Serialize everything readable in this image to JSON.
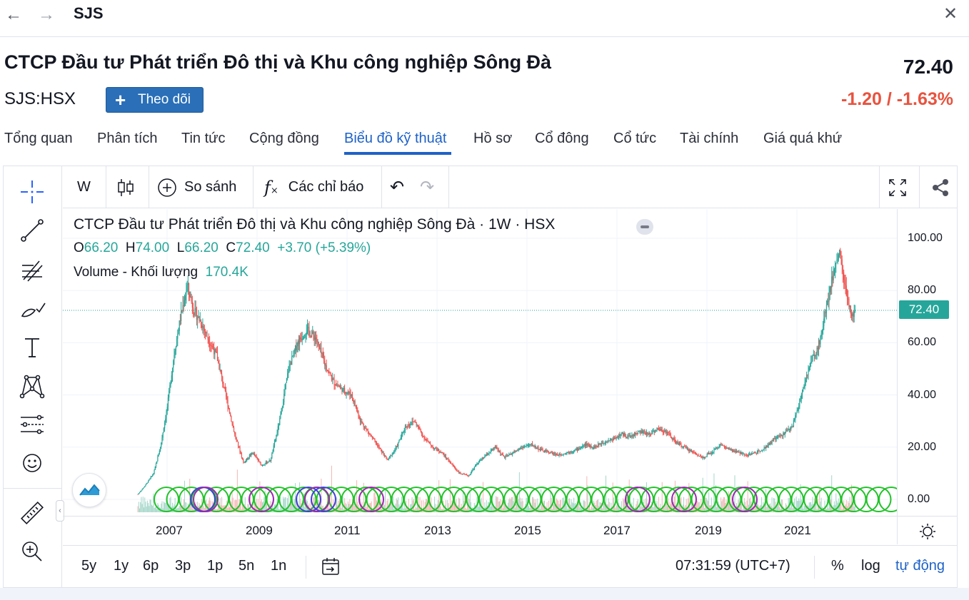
{
  "topbar": {
    "ticker": "SJS"
  },
  "header": {
    "company_name": "CTCP Đầu tư Phát triển Đô thị và Khu công nghiệp Sông Đà",
    "symbol": "SJS:HSX",
    "follow_label": "Theo dõi",
    "price": "72.40",
    "change": "-1.20 / -1.63%"
  },
  "tabs": [
    {
      "label": "Tổng quan"
    },
    {
      "label": "Phân tích"
    },
    {
      "label": "Tin tức"
    },
    {
      "label": "Cộng đồng"
    },
    {
      "label": "Biểu đồ kỹ thuật"
    },
    {
      "label": "Hồ sơ"
    },
    {
      "label": "Cổ đông"
    },
    {
      "label": "Cổ tức"
    },
    {
      "label": "Tài chính"
    },
    {
      "label": "Giá quá khứ"
    }
  ],
  "active_tab": 4,
  "chart_toolbar": {
    "interval": "W",
    "compare_label": "So sánh",
    "indicators_label": "Các chỉ báo"
  },
  "legend": {
    "title": "CTCP Đầu tư Phát triển Đô thị và Khu công nghiệp Sông Đà · 1W · HSX",
    "o_label": "O",
    "o_value": "66.20",
    "h_label": "H",
    "h_value": "74.00",
    "l_label": "L",
    "l_value": "66.20",
    "c_label": "C",
    "c_value": "72.40",
    "change": "+3.70 (+5.39%)",
    "volume_label": "Volume - Khối lượng",
    "volume_value": "170.4K"
  },
  "price_scale": {
    "labels": [
      "100.00",
      "80.00",
      "60.00",
      "40.00",
      "20.00",
      "0.00"
    ],
    "last_price": "72.40"
  },
  "time_scale": [
    "2007",
    "2009",
    "2011",
    "2013",
    "2015",
    "2017",
    "2019",
    "2021"
  ],
  "bottom_bar": {
    "ranges": [
      "5y",
      "1y",
      "6p",
      "3p",
      "1p",
      "5n",
      "1n"
    ],
    "clock": "07:31:59 (UTC+7)",
    "percent": "%",
    "log": "log",
    "auto": "tự động"
  },
  "colors": {
    "up": "#26a69a",
    "down": "#ef5350",
    "accent": "#1e62c8",
    "change_negative": "#e8533f",
    "event_marker": "#22c22a",
    "dividend_marker": "#9c27b0",
    "split_marker": "#3f3fd8"
  },
  "chart_data": {
    "type": "candlestick",
    "interval": "1W",
    "exchange": "HSX",
    "ylim": [
      0,
      100
    ],
    "y_ticks": [
      0,
      20,
      40,
      60,
      80,
      100
    ],
    "x_ticks": [
      "2007",
      "2009",
      "2011",
      "2013",
      "2015",
      "2017",
      "2019",
      "2021"
    ],
    "last_ohlc": {
      "open": 66.2,
      "high": 74.0,
      "low": 66.2,
      "close": 72.4,
      "change": 3.7,
      "change_pct": 5.39
    },
    "last_volume": "170.4K",
    "close_series_approx": [
      {
        "x": "2006.35",
        "y": 2
      },
      {
        "x": "2006.5",
        "y": 5
      },
      {
        "x": "2006.7",
        "y": 10
      },
      {
        "x": "2006.85",
        "y": 20
      },
      {
        "x": "2007.0",
        "y": 35
      },
      {
        "x": "2007.15",
        "y": 55
      },
      {
        "x": "2007.3",
        "y": 70
      },
      {
        "x": "2007.45",
        "y": 82
      },
      {
        "x": "2007.6",
        "y": 72
      },
      {
        "x": "2007.75",
        "y": 68
      },
      {
        "x": "2007.9",
        "y": 62
      },
      {
        "x": "2008.1",
        "y": 55
      },
      {
        "x": "2008.3",
        "y": 40
      },
      {
        "x": "2008.5",
        "y": 25
      },
      {
        "x": "2008.7",
        "y": 14
      },
      {
        "x": "2008.9",
        "y": 18
      },
      {
        "x": "2009.1",
        "y": 13
      },
      {
        "x": "2009.3",
        "y": 15
      },
      {
        "x": "2009.5",
        "y": 30
      },
      {
        "x": "2009.7",
        "y": 50
      },
      {
        "x": "2009.9",
        "y": 60
      },
      {
        "x": "2010.1",
        "y": 65
      },
      {
        "x": "2010.3",
        "y": 62
      },
      {
        "x": "2010.5",
        "y": 52
      },
      {
        "x": "2010.7",
        "y": 45
      },
      {
        "x": "2010.9",
        "y": 42
      },
      {
        "x": "2011.1",
        "y": 40
      },
      {
        "x": "2011.3",
        "y": 30
      },
      {
        "x": "2011.5",
        "y": 25
      },
      {
        "x": "2011.7",
        "y": 20
      },
      {
        "x": "2011.9",
        "y": 15
      },
      {
        "x": "2012.1",
        "y": 20
      },
      {
        "x": "2012.3",
        "y": 28
      },
      {
        "x": "2012.5",
        "y": 30
      },
      {
        "x": "2012.7",
        "y": 24
      },
      {
        "x": "2012.9",
        "y": 20
      },
      {
        "x": "2013.1",
        "y": 18
      },
      {
        "x": "2013.3",
        "y": 14
      },
      {
        "x": "2013.5",
        "y": 10
      },
      {
        "x": "2013.7",
        "y": 9
      },
      {
        "x": "2013.9",
        "y": 14
      },
      {
        "x": "2014.1",
        "y": 17
      },
      {
        "x": "2014.3",
        "y": 20
      },
      {
        "x": "2014.5",
        "y": 16
      },
      {
        "x": "2014.7",
        "y": 18
      },
      {
        "x": "2014.9",
        "y": 20
      },
      {
        "x": "2015.1",
        "y": 21
      },
      {
        "x": "2015.3",
        "y": 19
      },
      {
        "x": "2015.5",
        "y": 18
      },
      {
        "x": "2015.7",
        "y": 17
      },
      {
        "x": "2015.9",
        "y": 18
      },
      {
        "x": "2016.1",
        "y": 19
      },
      {
        "x": "2016.3",
        "y": 21
      },
      {
        "x": "2016.5",
        "y": 20
      },
      {
        "x": "2016.7",
        "y": 22
      },
      {
        "x": "2016.9",
        "y": 23
      },
      {
        "x": "2017.1",
        "y": 25
      },
      {
        "x": "2017.3",
        "y": 24
      },
      {
        "x": "2017.5",
        "y": 26
      },
      {
        "x": "2017.7",
        "y": 25
      },
      {
        "x": "2017.9",
        "y": 27
      },
      {
        "x": "2018.1",
        "y": 26
      },
      {
        "x": "2018.3",
        "y": 22
      },
      {
        "x": "2018.5",
        "y": 20
      },
      {
        "x": "2018.7",
        "y": 18
      },
      {
        "x": "2018.9",
        "y": 16
      },
      {
        "x": "2019.1",
        "y": 18
      },
      {
        "x": "2019.3",
        "y": 21
      },
      {
        "x": "2019.5",
        "y": 19
      },
      {
        "x": "2019.7",
        "y": 18
      },
      {
        "x": "2019.9",
        "y": 17
      },
      {
        "x": "2020.1",
        "y": 18
      },
      {
        "x": "2020.3",
        "y": 20
      },
      {
        "x": "2020.5",
        "y": 23
      },
      {
        "x": "2020.7",
        "y": 25
      },
      {
        "x": "2020.9",
        "y": 28
      },
      {
        "x": "2021.1",
        "y": 40
      },
      {
        "x": "2021.3",
        "y": 52
      },
      {
        "x": "2021.5",
        "y": 60
      },
      {
        "x": "2021.7",
        "y": 78
      },
      {
        "x": "2021.85",
        "y": 90
      },
      {
        "x": "2021.95",
        "y": 95
      },
      {
        "x": "2022.05",
        "y": 84
      },
      {
        "x": "2022.15",
        "y": 74
      },
      {
        "x": "2022.25",
        "y": 70
      },
      {
        "x": "2022.3",
        "y": 72.4
      }
    ]
  }
}
